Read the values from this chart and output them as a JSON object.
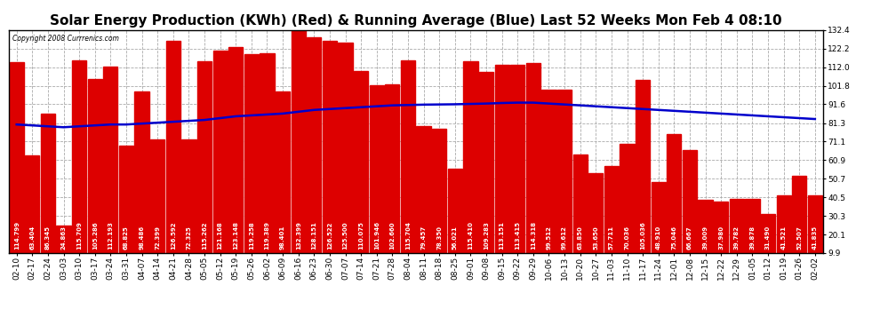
{
  "title": "Solar Energy Production (KWh) (Red) & Running Average (Blue) Last 52 Weeks Mon Feb 4 08:10",
  "copyright": "Copyright 2008 Currrenics.com",
  "ylim": [
    9.9,
    132.4
  ],
  "yticks": [
    9.9,
    20.1,
    30.3,
    40.5,
    50.7,
    60.9,
    71.1,
    81.3,
    91.6,
    101.8,
    112.0,
    122.2,
    132.4
  ],
  "bar_color": "#dd0000",
  "line_color": "#0000cc",
  "background_color": "#ffffff",
  "grid_color": "#aaaaaa",
  "categories": [
    "02-10",
    "02-17",
    "02-24",
    "03-03",
    "03-10",
    "03-17",
    "03-24",
    "03-31",
    "04-07",
    "04-14",
    "04-21",
    "04-28",
    "05-05",
    "05-12",
    "05-19",
    "05-26",
    "06-02",
    "06-09",
    "06-16",
    "06-23",
    "06-30",
    "07-07",
    "07-14",
    "07-21",
    "07-28",
    "08-04",
    "08-11",
    "08-18",
    "08-25",
    "09-01",
    "09-08",
    "09-15",
    "09-22",
    "09-29",
    "10-06",
    "10-13",
    "10-20",
    "10-27",
    "11-03",
    "11-10",
    "11-17",
    "11-24",
    "12-01",
    "12-08",
    "12-15",
    "12-22",
    "12-29",
    "01-05",
    "01-12",
    "01-19",
    "01-26",
    "02-02"
  ],
  "values": [
    114.799,
    63.404,
    86.345,
    24.863,
    115.709,
    105.286,
    112.193,
    68.825,
    98.486,
    72.399,
    126.592,
    72.325,
    115.262,
    121.168,
    123.148,
    119.258,
    119.389,
    98.401,
    132.399,
    128.151,
    126.522,
    125.5,
    110.075,
    101.946,
    102.66,
    115.704,
    79.457,
    78.35,
    56.021,
    115.41,
    109.283,
    113.151,
    113.415,
    114.318,
    99.512,
    99.612,
    63.85,
    53.65,
    57.711,
    70.036,
    105.036,
    48.91,
    75.046,
    66.667,
    39.009,
    37.98,
    39.782,
    39.878,
    31.49,
    41.521,
    52.507,
    41.835
  ],
  "running_avg": [
    80.5,
    80.0,
    79.5,
    79.0,
    79.5,
    80.0,
    80.5,
    80.5,
    81.0,
    81.5,
    82.0,
    82.5,
    83.0,
    84.0,
    85.0,
    85.5,
    86.0,
    86.5,
    87.5,
    88.5,
    89.0,
    89.5,
    90.0,
    90.5,
    91.0,
    91.2,
    91.4,
    91.5,
    91.6,
    91.8,
    92.0,
    92.3,
    92.5,
    92.5,
    92.0,
    91.5,
    91.0,
    90.5,
    90.0,
    89.5,
    89.0,
    88.5,
    88.0,
    87.5,
    87.0,
    86.5,
    86.0,
    85.5,
    85.0,
    84.5,
    84.0,
    83.5
  ],
  "title_fontsize": 11,
  "tick_fontsize": 6.5,
  "value_fontsize": 5.0
}
